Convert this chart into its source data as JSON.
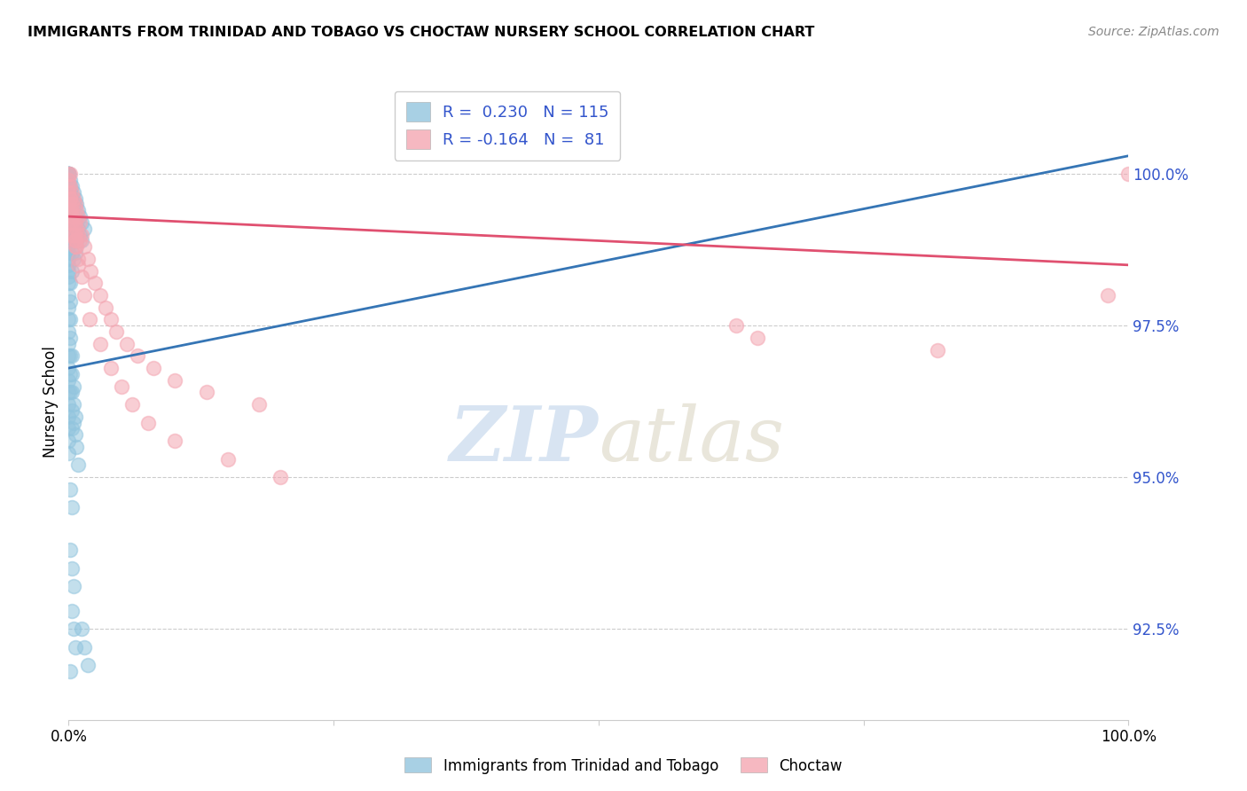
{
  "title": "IMMIGRANTS FROM TRINIDAD AND TOBAGO VS CHOCTAW NURSERY SCHOOL CORRELATION CHART",
  "source_text": "Source: ZipAtlas.com",
  "ylabel": "Nursery School",
  "ytick_labels": [
    "100.0%",
    "97.5%",
    "95.0%",
    "92.5%"
  ],
  "ytick_values": [
    100.0,
    97.5,
    95.0,
    92.5
  ],
  "ylim": [
    91.0,
    101.5
  ],
  "xlim": [
    0.0,
    100.0
  ],
  "legend_r1_label": "R =",
  "legend_r1_val": "0.230",
  "legend_n1_label": "N =",
  "legend_n1_val": "115",
  "legend_r2_label": "R =",
  "legend_r2_val": "-0.164",
  "legend_n2_label": "N =",
  "legend_n2_val": "81",
  "blue_color": "#92c5de",
  "pink_color": "#f4a6b2",
  "blue_line_color": "#3575b5",
  "pink_line_color": "#e05070",
  "watermark_zip": "ZIP",
  "watermark_atlas": "atlas",
  "legend_label_blue": "Immigrants from Trinidad and Tobago",
  "legend_label_pink": "Choctaw",
  "blue_scatter_x": [
    0.0,
    0.0,
    0.0,
    0.0,
    0.0,
    0.0,
    0.0,
    0.0,
    0.0,
    0.0,
    0.0,
    0.0,
    0.0,
    0.0,
    0.0,
    0.0,
    0.0,
    0.0,
    0.0,
    0.0,
    0.0,
    0.0,
    0.0,
    0.0,
    0.0,
    0.0,
    0.0,
    0.0,
    0.0,
    0.0,
    0.0,
    0.0,
    0.0,
    0.0,
    0.0,
    0.0,
    0.0,
    0.0,
    0.0,
    0.0,
    0.15,
    0.15,
    0.15,
    0.15,
    0.15,
    0.15,
    0.15,
    0.15,
    0.3,
    0.3,
    0.3,
    0.3,
    0.3,
    0.3,
    0.3,
    0.45,
    0.45,
    0.45,
    0.45,
    0.45,
    0.6,
    0.6,
    0.6,
    0.6,
    0.75,
    0.75,
    0.75,
    0.9,
    0.9,
    1.05,
    1.05,
    1.2,
    1.2,
    1.5,
    0.15,
    0.15,
    0.15,
    0.15,
    0.15,
    0.15,
    0.15,
    0.3,
    0.3,
    0.3,
    0.3,
    0.3,
    0.45,
    0.45,
    0.45,
    0.6,
    0.6,
    0.75,
    0.9,
    0.15,
    0.3,
    0.15,
    0.3,
    0.45,
    0.3,
    0.45,
    0.6,
    0.15,
    1.2,
    1.5,
    1.8
  ],
  "blue_scatter_y": [
    100.0,
    100.0,
    100.0,
    100.0,
    100.0,
    100.0,
    100.0,
    100.0,
    99.8,
    99.8,
    99.7,
    99.6,
    99.5,
    99.4,
    99.3,
    99.2,
    99.1,
    99.0,
    98.9,
    98.8,
    98.7,
    98.6,
    98.5,
    98.4,
    98.3,
    98.2,
    98.0,
    97.8,
    97.6,
    97.4,
    97.2,
    97.0,
    96.8,
    96.6,
    96.4,
    96.2,
    96.0,
    95.8,
    95.6,
    95.4,
    99.9,
    99.8,
    99.7,
    99.6,
    99.5,
    99.3,
    99.1,
    98.9,
    99.8,
    99.6,
    99.4,
    99.2,
    99.0,
    98.7,
    98.4,
    99.7,
    99.5,
    99.2,
    98.9,
    98.6,
    99.6,
    99.3,
    99.0,
    98.7,
    99.5,
    99.2,
    98.9,
    99.4,
    99.1,
    99.3,
    99.0,
    99.2,
    98.9,
    99.1,
    98.2,
    97.9,
    97.6,
    97.3,
    97.0,
    96.7,
    96.4,
    97.0,
    96.7,
    96.4,
    96.1,
    95.8,
    96.5,
    96.2,
    95.9,
    96.0,
    95.7,
    95.5,
    95.2,
    94.8,
    94.5,
    93.8,
    93.5,
    93.2,
    92.8,
    92.5,
    92.2,
    91.8,
    92.5,
    92.2,
    91.9
  ],
  "pink_scatter_x": [
    0.0,
    0.0,
    0.0,
    0.0,
    0.0,
    0.0,
    0.15,
    0.15,
    0.15,
    0.15,
    0.15,
    0.3,
    0.3,
    0.3,
    0.3,
    0.45,
    0.45,
    0.45,
    0.6,
    0.6,
    0.6,
    0.75,
    0.75,
    0.9,
    0.9,
    1.05,
    1.05,
    1.2,
    1.5,
    1.8,
    2.1,
    2.5,
    3.0,
    3.5,
    4.0,
    4.5,
    5.5,
    6.5,
    8.0,
    10.0,
    13.0,
    18.0,
    0.15,
    0.3,
    0.45,
    0.6,
    0.75,
    0.3,
    0.6,
    0.9,
    1.2,
    0.6,
    0.9,
    1.5,
    2.0,
    3.0,
    4.0,
    5.0,
    6.0,
    7.5,
    10.0,
    15.0,
    20.0,
    63.0,
    65.0,
    82.0,
    98.0,
    100.0
  ],
  "pink_scatter_y": [
    100.0,
    99.9,
    99.8,
    99.7,
    99.5,
    99.4,
    100.0,
    99.8,
    99.6,
    99.4,
    99.2,
    99.7,
    99.5,
    99.3,
    99.0,
    99.6,
    99.3,
    99.0,
    99.5,
    99.2,
    98.9,
    99.4,
    99.1,
    99.3,
    99.0,
    99.2,
    98.9,
    99.0,
    98.8,
    98.6,
    98.4,
    98.2,
    98.0,
    97.8,
    97.6,
    97.4,
    97.2,
    97.0,
    96.8,
    96.6,
    96.4,
    96.2,
    99.6,
    99.4,
    99.2,
    99.0,
    98.8,
    99.2,
    98.9,
    98.6,
    98.3,
    98.8,
    98.5,
    98.0,
    97.6,
    97.2,
    96.8,
    96.5,
    96.2,
    95.9,
    95.6,
    95.3,
    95.0,
    97.5,
    97.3,
    97.1,
    98.0,
    100.0
  ],
  "blue_line_x": [
    0.0,
    100.0
  ],
  "blue_line_y": [
    96.8,
    100.3
  ],
  "pink_line_x": [
    0.0,
    100.0
  ],
  "pink_line_y": [
    99.3,
    98.5
  ]
}
